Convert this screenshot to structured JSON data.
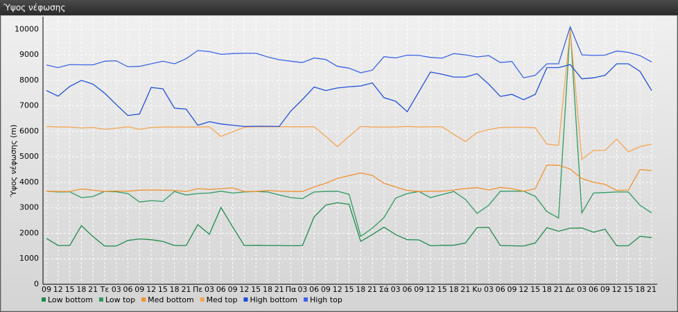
{
  "chart_data": {
    "type": "line",
    "title": "Ύψος νέφωσης",
    "y_label": "Ύψος νέφωσης (m)",
    "categories": [
      "09",
      "12",
      "15",
      "18",
      "21",
      "Τε",
      "03",
      "06",
      "09",
      "12",
      "15",
      "18",
      "21",
      "Πε",
      "03",
      "06",
      "09",
      "12",
      "15",
      "18",
      "21",
      "Πα",
      "03",
      "06",
      "09",
      "12",
      "15",
      "18",
      "21",
      "Σά",
      "03",
      "06",
      "09",
      "12",
      "15",
      "18",
      "21",
      "Κυ",
      "03",
      "06",
      "09",
      "12",
      "15",
      "18",
      "21",
      "Δε",
      "03",
      "06",
      "09",
      "12",
      "15",
      "18",
      "21"
    ],
    "ylim": [
      0,
      10500
    ],
    "yticks": [
      0,
      1000,
      2000,
      3000,
      4000,
      5000,
      6000,
      7000,
      8000,
      9000,
      10000
    ],
    "grid": true,
    "series": [
      {
        "name": "Low bottom",
        "color": "#1e8a4c",
        "values": [
          1800,
          1520,
          1520,
          2300,
          1870,
          1500,
          1500,
          1720,
          1780,
          1750,
          1680,
          1520,
          1520,
          2340,
          1960,
          3010,
          2250,
          1520,
          1530,
          1520,
          1520,
          1510,
          1520,
          2640,
          3110,
          3200,
          3140,
          1680,
          1950,
          2240,
          1950,
          1750,
          1740,
          1510,
          1530,
          1530,
          1620,
          2220,
          2230,
          1520,
          1510,
          1500,
          1620,
          2220,
          2080,
          2200,
          2210,
          2040,
          2160,
          1510,
          1510,
          1880,
          1830
        ]
      },
      {
        "name": "Low top",
        "color": "#2e9a60",
        "values": [
          3650,
          3620,
          3630,
          3400,
          3440,
          3640,
          3630,
          3560,
          3230,
          3280,
          3250,
          3640,
          3500,
          3560,
          3580,
          3650,
          3580,
          3620,
          3640,
          3620,
          3500,
          3400,
          3360,
          3620,
          3640,
          3650,
          3530,
          1880,
          2200,
          2620,
          3380,
          3560,
          3640,
          3400,
          3520,
          3640,
          3330,
          2780,
          3100,
          3650,
          3650,
          3650,
          3450,
          2850,
          2600,
          10050,
          2800,
          3580,
          3600,
          3620,
          3620,
          3100,
          2800
        ]
      },
      {
        "name": "Med bottom",
        "color": "#f0922e",
        "values": [
          3650,
          3640,
          3640,
          3740,
          3690,
          3640,
          3660,
          3650,
          3690,
          3700,
          3690,
          3680,
          3640,
          3750,
          3720,
          3750,
          3780,
          3640,
          3640,
          3680,
          3650,
          3640,
          3640,
          3820,
          3960,
          4150,
          4260,
          4370,
          4270,
          3960,
          3820,
          3680,
          3640,
          3650,
          3650,
          3700,
          3760,
          3790,
          3700,
          3800,
          3750,
          3650,
          3750,
          4680,
          4670,
          4520,
          4150,
          4000,
          3920,
          3680,
          3700,
          4500,
          4460
        ]
      },
      {
        "name": "Med top",
        "color": "#f5a553",
        "values": [
          6190,
          6170,
          6170,
          6130,
          6150,
          6080,
          6120,
          6180,
          6080,
          6150,
          6170,
          6170,
          6170,
          6170,
          6180,
          5800,
          5980,
          6160,
          6180,
          6180,
          6180,
          6180,
          6180,
          6180,
          5800,
          5400,
          5800,
          6190,
          6170,
          6170,
          6170,
          6190,
          6170,
          6180,
          6180,
          5880,
          5600,
          5950,
          6070,
          6150,
          6160,
          6160,
          6140,
          5500,
          5450,
          10000,
          4900,
          5250,
          5250,
          5700,
          5200,
          5400,
          5500
        ]
      },
      {
        "name": "High bottom",
        "color": "#1f4fd8",
        "values": [
          7600,
          7380,
          7760,
          8000,
          7850,
          7500,
          7050,
          6620,
          6680,
          7720,
          7670,
          6910,
          6870,
          6240,
          6380,
          6290,
          6240,
          6190,
          6200,
          6200,
          6190,
          6800,
          7250,
          7740,
          7600,
          7700,
          7750,
          7780,
          7900,
          7320,
          7180,
          6770,
          7550,
          8330,
          8240,
          8130,
          8130,
          8260,
          7850,
          7370,
          7450,
          7240,
          7450,
          8500,
          8500,
          8620,
          8060,
          8100,
          8200,
          8650,
          8650,
          8350,
          7600
        ]
      },
      {
        "name": "High top",
        "color": "#3a63e8",
        "values": [
          8600,
          8500,
          8620,
          8610,
          8610,
          8750,
          8770,
          8530,
          8550,
          8650,
          8750,
          8650,
          8850,
          9170,
          9130,
          9020,
          9050,
          9060,
          9060,
          8920,
          8810,
          8750,
          8700,
          8880,
          8820,
          8550,
          8480,
          8300,
          8400,
          8930,
          8880,
          8990,
          8980,
          8900,
          8870,
          9050,
          9000,
          8920,
          8970,
          8700,
          8740,
          8100,
          8200,
          8650,
          8650,
          10100,
          9000,
          8980,
          8990,
          9150,
          9100,
          8970,
          8720
        ]
      }
    ]
  }
}
